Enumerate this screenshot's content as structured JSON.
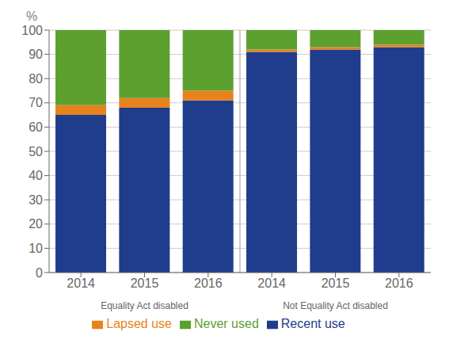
{
  "chart_data": {
    "type": "bar",
    "stacked": true,
    "y_label": "%",
    "categories": [
      "2014",
      "2015",
      "2016",
      "2014",
      "2015",
      "2016"
    ],
    "groups": [
      "Equality Act disabled",
      "Not Equality Act disabled"
    ],
    "series": [
      {
        "name": "Recent use",
        "color": "#1F3D8C",
        "values": [
          65,
          68,
          71,
          91,
          92,
          93
        ]
      },
      {
        "name": "Lapsed use",
        "color": "#E8821C",
        "values": [
          4,
          4,
          4,
          1,
          1,
          1
        ]
      },
      {
        "name": "Never used",
        "color": "#5CA030",
        "values": [
          31,
          28,
          25,
          8,
          7,
          6
        ]
      }
    ],
    "ylim": [
      0,
      100
    ],
    "yticks": [
      0,
      10,
      20,
      30,
      40,
      50,
      60,
      70,
      80,
      90,
      100
    ],
    "grid": true,
    "legend": "bottom"
  }
}
